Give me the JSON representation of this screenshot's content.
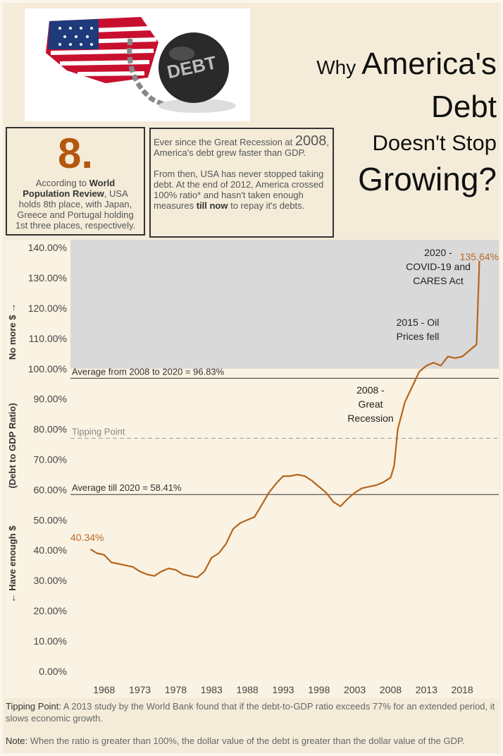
{
  "image_text": "DEBT",
  "title": {
    "small": "Why",
    "lines": [
      "America's",
      "Debt",
      "Doesn't Stop",
      "Growing?"
    ]
  },
  "rank_box": {
    "number": "8.",
    "segments": [
      "According to ",
      "World Population Review",
      ", USA holds 8th place, with Japan, Greece and Portugal holding 1st three places, respectively."
    ]
  },
  "info_box": {
    "segments": [
      "Ever since the Great Recession at ",
      "2008",
      ", America's debt grew faster than GDP.",
      "From then, USA has never stopped taking debt. At the end of 2012, America crossed 100% ratio* and hasn't taken enough measures ",
      "till now",
      " to repay it's debts."
    ]
  },
  "chart_data": {
    "type": "line",
    "y_label": [
      "← Have enough $",
      "(Debt to GDP Ratio)",
      "No more $ →"
    ],
    "x": [
      1966.1,
      1967,
      1968,
      1969,
      1970,
      1971,
      1972,
      1973,
      1974,
      1975,
      1976,
      1977,
      1978,
      1979,
      1980,
      1981,
      1982,
      1983,
      1984,
      1985,
      1986,
      1987,
      1988,
      1989,
      1990,
      1991,
      1992,
      1993,
      1994,
      1995,
      1996,
      1997,
      1998,
      1999,
      2000,
      2001,
      2002,
      2003,
      2004,
      2005,
      2006,
      2007,
      2008,
      2008.5,
      2009,
      2010,
      2011,
      2012,
      2013,
      2014,
      2015,
      2016,
      2017,
      2018,
      2019,
      2020,
      2020.4
    ],
    "values": [
      40.34,
      39,
      38.5,
      36,
      35.5,
      35,
      34.5,
      33,
      32,
      31.5,
      33,
      34,
      33.5,
      32,
      31.5,
      31,
      33,
      37.5,
      39,
      42,
      47,
      49,
      50,
      51,
      55,
      59,
      62,
      64.5,
      64.5,
      65,
      64.5,
      63,
      61,
      59,
      56,
      54.5,
      57,
      59,
      60.5,
      61,
      61.5,
      62.5,
      64,
      68,
      80,
      89,
      94,
      99,
      101,
      102,
      101,
      104,
      103.5,
      104,
      106,
      108,
      135.64
    ],
    "value_labels": [
      "40.34%",
      null,
      null,
      null,
      null,
      null,
      null,
      null,
      null,
      null,
      null,
      null,
      null,
      null,
      null,
      null,
      null,
      null,
      null,
      null,
      null,
      null,
      null,
      null,
      null,
      null,
      null,
      null,
      null,
      null,
      null,
      null,
      null,
      null,
      null,
      null,
      null,
      null,
      null,
      null,
      null,
      null,
      null,
      null,
      null,
      null,
      null,
      null,
      null,
      null,
      null,
      null,
      null,
      null,
      null,
      null,
      "135.64%"
    ],
    "color": "#b5651d",
    "xlim": [
      1963.3,
      2023.1
    ],
    "xticks": [
      1968,
      1973,
      1978,
      1983,
      1988,
      1993,
      1998,
      2003,
      2008,
      2013,
      2018
    ],
    "ylim": [
      -1.9,
      142.6
    ],
    "yticks": [
      {
        "value": 0,
        "label": "0.00%"
      },
      {
        "value": 10,
        "label": "10.00%"
      },
      {
        "value": 20,
        "label": "20.00%"
      },
      {
        "value": 30,
        "label": "30.00%"
      },
      {
        "value": 40,
        "label": "40.00%"
      },
      {
        "value": 50,
        "label": "50.00%"
      },
      {
        "value": 60,
        "label": "60.00%"
      },
      {
        "value": 70,
        "label": "70.00%"
      },
      {
        "value": 80,
        "label": "80.00%"
      },
      {
        "value": 90,
        "label": "90.00%"
      },
      {
        "value": 100,
        "label": "100.00%"
      },
      {
        "value": 110,
        "label": "110.00%"
      },
      {
        "value": 120,
        "label": "120.00%"
      },
      {
        "value": 130,
        "label": "130.00%"
      },
      {
        "value": 140,
        "label": "140.00%"
      }
    ],
    "grid": false,
    "band": {
      "from": 100,
      "to": 142.6,
      "color": "#d9d9d9"
    },
    "reference_lines": [
      {
        "value": 96.83,
        "label": "Average from 2008 to 2020 = 96.83%",
        "style": "solid"
      },
      {
        "value": 77,
        "label": "Tipping Point",
        "style": "dashed"
      },
      {
        "value": 58.41,
        "label": "Average till 2020 = 58.41%",
        "style": "solid"
      }
    ],
    "annotations": [
      {
        "lines": [
          "2020 -",
          "COVID-19 and",
          "CARES Act"
        ]
      },
      {
        "lines": [
          "2015 - Oil",
          "Prices fell"
        ]
      },
      {
        "lines": [
          "2008 -",
          "Great",
          "Recession"
        ]
      }
    ]
  },
  "notes": [
    {
      "label": "Tipping Point:",
      "text": " A 2013 study by the World Bank found that if the debt-to-GDP ratio exceeds 77% for an extended period, it slows economic growth."
    },
    {
      "label": "Note:",
      "text": " When the ratio is greater than 100%, the dollar value of the debt is greater than the dollar value of the GDP."
    }
  ]
}
